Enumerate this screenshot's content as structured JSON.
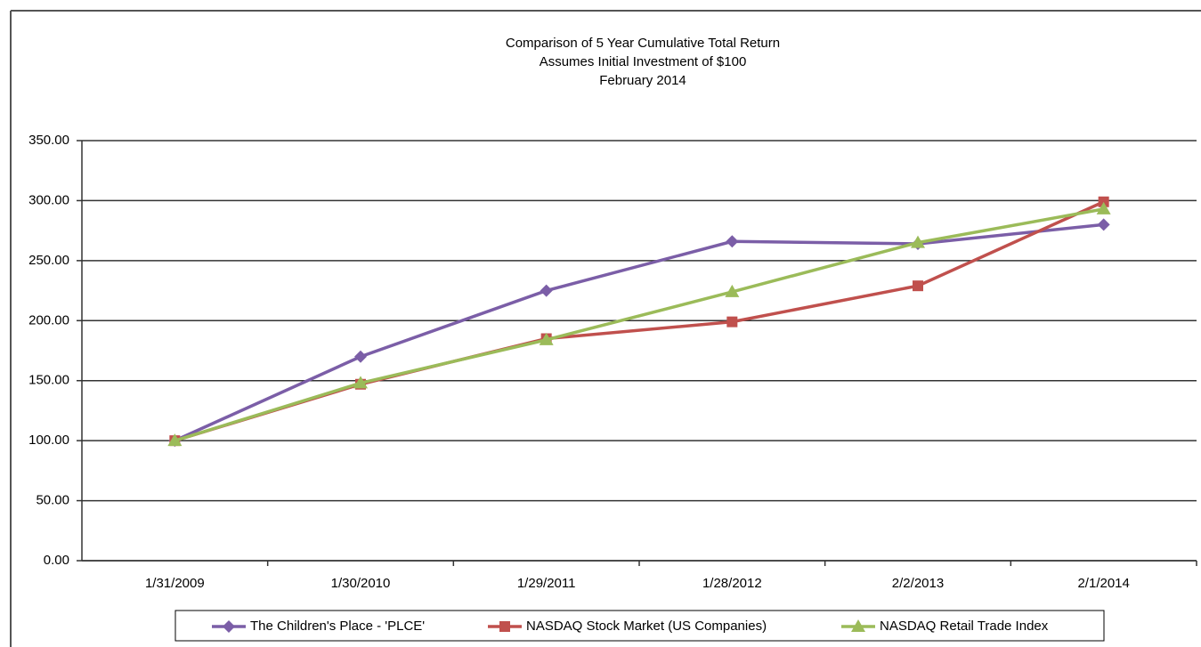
{
  "chart_data": {
    "type": "line",
    "title": [
      "Comparison of 5 Year Cumulative Total Return",
      "Assumes Initial Investment of $100",
      "February 2014"
    ],
    "categories": [
      "1/31/2009",
      "1/30/2010",
      "1/29/2011",
      "1/28/2012",
      "2/2/2013",
      "2/1/2014"
    ],
    "series": [
      {
        "name": "The Children's Place - 'PLCE'",
        "color": "#7b5ea7",
        "marker": "diamond",
        "values": [
          100,
          170,
          225,
          266,
          264,
          280
        ]
      },
      {
        "name": "NASDAQ Stock Market (US Companies)",
        "color": "#c0504d",
        "marker": "square",
        "values": [
          100,
          147,
          185,
          199,
          229,
          299
        ]
      },
      {
        "name": "NASDAQ Retail Trade Index",
        "color": "#9bbb59",
        "marker": "triangle",
        "values": [
          100,
          148,
          184,
          224,
          265,
          293
        ]
      }
    ],
    "ylim": [
      0,
      350
    ],
    "yticks": [
      {
        "value": 0,
        "label": "0.00"
      },
      {
        "value": 50,
        "label": "50.00"
      },
      {
        "value": 100,
        "label": "100.00"
      },
      {
        "value": 150,
        "label": "150.00"
      },
      {
        "value": 200,
        "label": "200.00"
      },
      {
        "value": 250,
        "label": "250.00"
      },
      {
        "value": 300,
        "label": "300.00"
      },
      {
        "value": 350,
        "label": "350.00"
      }
    ],
    "grid": true,
    "legend": "bottom"
  }
}
